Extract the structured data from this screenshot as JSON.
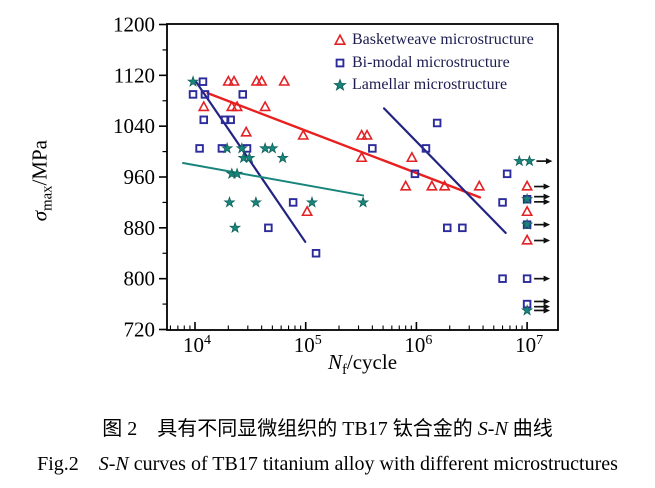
{
  "figure": {
    "caption_cn": {
      "prefix": "图 2　具有不同显微组织的 TB17 钛合金的 ",
      "italic": "S-N",
      "suffix": " 曲线"
    },
    "caption_en": {
      "prefix": "Fig.2　",
      "italic": "S-N",
      "suffix": " curves of TB17 titanium alloy with different microstructures"
    }
  },
  "chart_data": {
    "type": "scatter",
    "x_scale": "log",
    "xlabel": {
      "italic": "N",
      "sub": "f",
      "rest": "/cycle"
    },
    "ylabel": {
      "italic": "σ",
      "sub": "max",
      "rest": "/MPa"
    },
    "xlim": [
      5600,
      19000000
    ],
    "ylim": [
      720,
      1200
    ],
    "y_major_ticks": [
      720,
      800,
      880,
      960,
      1040,
      1120,
      1200
    ],
    "y_minor_ticks": [
      760,
      840,
      920,
      1000,
      1080,
      1160
    ],
    "x_tick_exponents": [
      4,
      5,
      6,
      7
    ],
    "grid": false,
    "legend_position": "top-right-inside",
    "colors": {
      "basketweave": "#e32226",
      "bimodal": "#2b2b9b",
      "lamellar": "#17857b",
      "trend_red": "#e8201f",
      "trend_navy": "#232384",
      "trend_teal": "#17857b",
      "axis": "#000000",
      "arrow": "#111111",
      "legend_text": "#1c1c50"
    },
    "series": [
      {
        "name": "Basketweave microstructure",
        "marker": "triangle",
        "color": "#e32226",
        "points": [
          [
            20000,
            1110,
            0
          ],
          [
            22500,
            1110,
            0
          ],
          [
            36000,
            1110,
            0
          ],
          [
            40000,
            1110,
            0
          ],
          [
            64000,
            1110,
            0
          ],
          [
            12000,
            1070,
            0
          ],
          [
            21500,
            1070,
            0
          ],
          [
            24000,
            1070,
            0
          ],
          [
            43000,
            1070,
            0
          ],
          [
            29000,
            1030,
            0
          ],
          [
            95000,
            1025,
            0
          ],
          [
            320000,
            1025,
            0
          ],
          [
            358000,
            1025,
            0
          ],
          [
            320000,
            990,
            0
          ],
          [
            910000,
            990,
            0
          ],
          [
            103000,
            905,
            0
          ],
          [
            800000,
            945,
            0
          ],
          [
            1380000,
            945,
            0
          ],
          [
            1800000,
            945,
            0
          ],
          [
            3700000,
            945,
            0
          ],
          [
            10000000,
            945,
            1
          ],
          [
            10000000,
            905,
            0
          ],
          [
            10000000,
            860,
            1
          ]
        ]
      },
      {
        "name": "Bi-modal microstructure",
        "marker": "square",
        "color": "#2b2b9b",
        "points": [
          [
            11800,
            1110,
            0
          ],
          [
            9600,
            1090,
            0
          ],
          [
            12300,
            1090,
            0
          ],
          [
            27000,
            1090,
            0
          ],
          [
            12000,
            1050,
            0
          ],
          [
            18700,
            1050,
            0
          ],
          [
            21000,
            1050,
            0
          ],
          [
            11000,
            1005,
            0
          ],
          [
            17500,
            1005,
            0
          ],
          [
            29500,
            1005,
            0
          ],
          [
            400000,
            1005,
            0
          ],
          [
            1220000,
            1005,
            0
          ],
          [
            1540000,
            1045,
            0
          ],
          [
            970000,
            965,
            0
          ],
          [
            6600000,
            965,
            0
          ],
          [
            77000,
            920,
            0
          ],
          [
            6000000,
            920,
            0
          ],
          [
            46000,
            880,
            0
          ],
          [
            1900000,
            880,
            0
          ],
          [
            2600000,
            880,
            0
          ],
          [
            124000,
            840,
            0
          ],
          [
            6000000,
            800,
            0
          ],
          [
            10000000,
            800,
            1
          ],
          [
            10000000,
            760,
            2
          ],
          [
            10000000,
            925,
            2
          ],
          [
            10000000,
            885,
            1
          ]
        ]
      },
      {
        "name": "Lamellar microstructure",
        "marker": "star",
        "color": "#17857b",
        "points": [
          [
            9600,
            1110,
            0
          ],
          [
            19500,
            1005,
            0
          ],
          [
            26500,
            1005,
            0
          ],
          [
            43000,
            1005,
            0
          ],
          [
            50000,
            1005,
            0
          ],
          [
            27500,
            990,
            0
          ],
          [
            31000,
            990,
            0
          ],
          [
            62000,
            990,
            0
          ],
          [
            21500,
            965,
            0
          ],
          [
            24000,
            965,
            0
          ],
          [
            20500,
            920,
            0
          ],
          [
            35500,
            920,
            0
          ],
          [
            114000,
            920,
            0
          ],
          [
            330000,
            920,
            0
          ],
          [
            23000,
            880,
            0
          ],
          [
            8500000,
            985,
            0
          ],
          [
            10500000,
            985,
            1
          ],
          [
            10000000,
            925,
            0
          ],
          [
            10000000,
            885,
            0
          ],
          [
            10000000,
            750,
            1
          ]
        ]
      }
    ],
    "trend_lines": [
      {
        "series": "basketweave",
        "color": "#e8201f",
        "width": 2.4,
        "from": [
          13000,
          1092
        ],
        "to": [
          3750000,
          928
        ]
      },
      {
        "series": "bimodal-low-cycle",
        "color": "#232384",
        "width": 2.2,
        "from": [
          10200,
          1110
        ],
        "to": [
          99000,
          858
        ]
      },
      {
        "series": "bimodal-high-cycle",
        "color": "#232384",
        "width": 2.2,
        "from": [
          510000,
          1068
        ],
        "to": [
          6400000,
          872
        ]
      },
      {
        "series": "lamellar",
        "color": "#17857b",
        "width": 2.0,
        "from": [
          7800,
          982
        ],
        "to": [
          330000,
          931
        ]
      }
    ],
    "runout_note": "points flagged with arrow count >0 are runout tests (right arrows at ~10^7 cycles)"
  }
}
